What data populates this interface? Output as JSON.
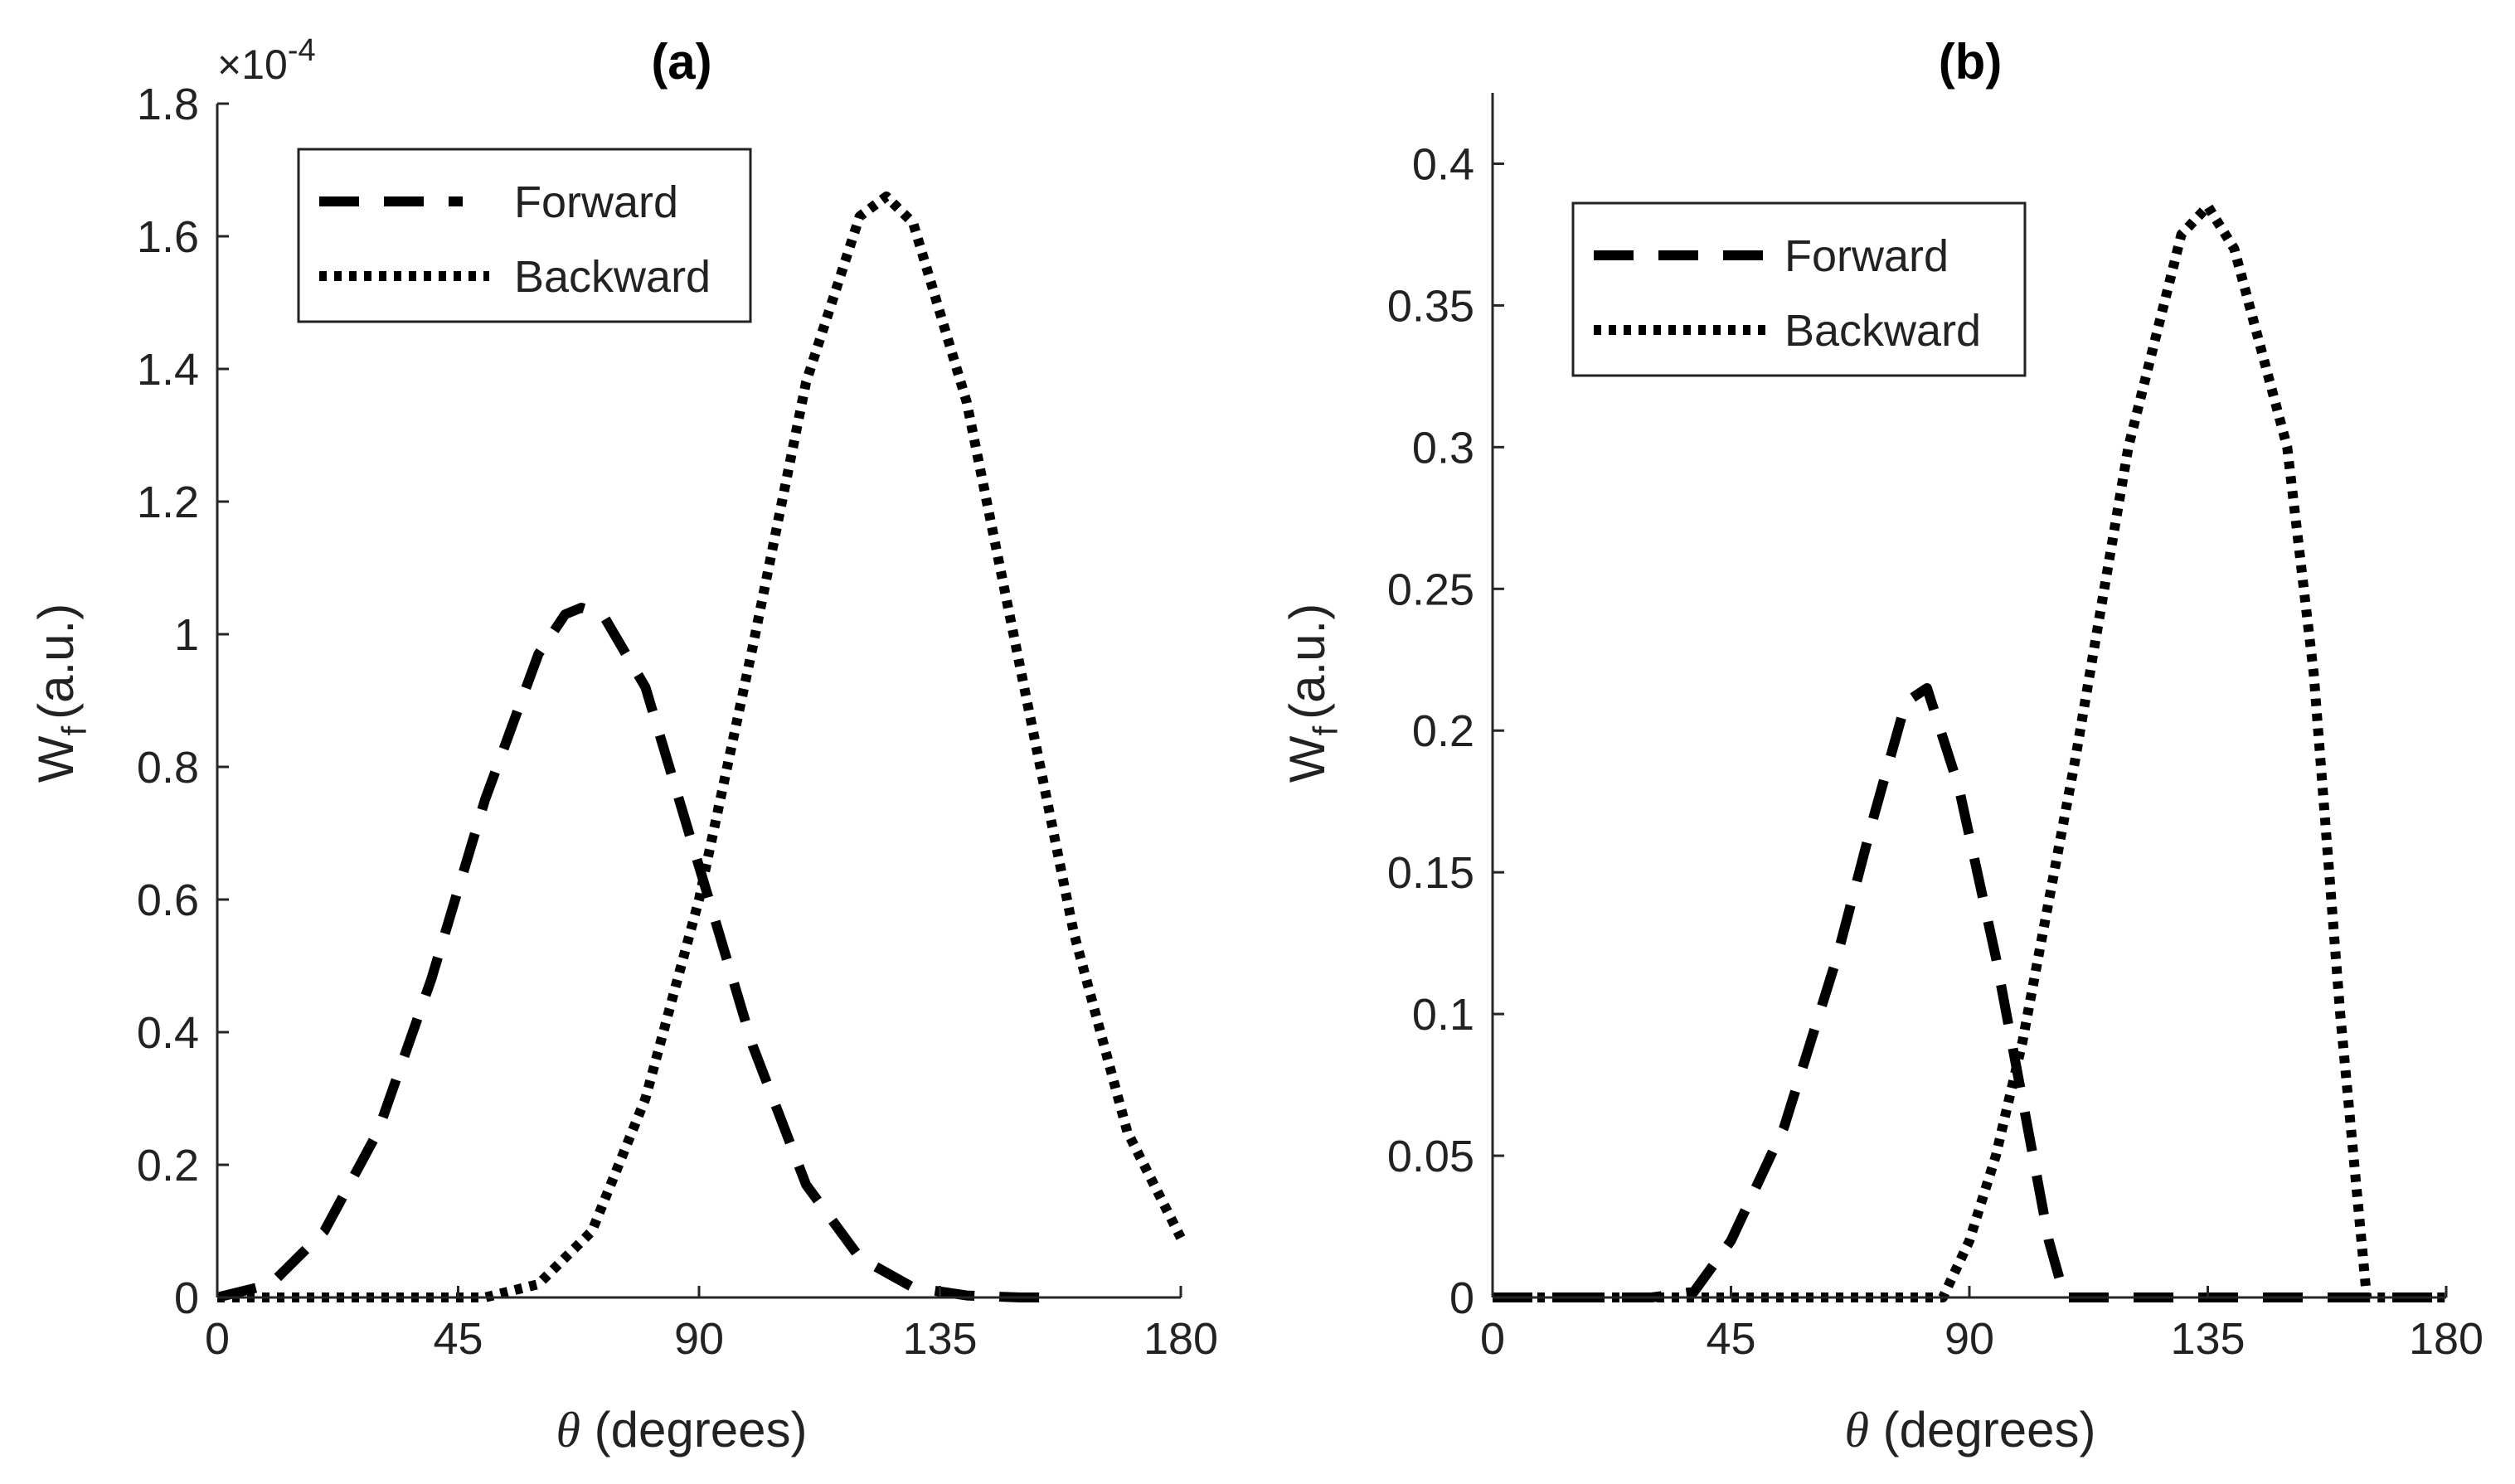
{
  "chart_data": [
    {
      "type": "line",
      "panel": "a",
      "title": "(a)",
      "xlabel": "θ (degrees)",
      "ylabel": "W_f (a.u.)",
      "ylabel_base": "W",
      "ylabel_sub": "f",
      "ylabel_unit": "(a.u.)",
      "xlabel_symbol": "θ",
      "xlabel_rest": " (degrees)",
      "exponent_label": {
        "prefix": "×10",
        "power": "-4"
      },
      "xlim": [
        0,
        180
      ],
      "ylim": [
        0,
        1.8
      ],
      "xticks": [
        0,
        45,
        90,
        135,
        180
      ],
      "xtick_labels": [
        "0",
        "45",
        "90",
        "135",
        "180"
      ],
      "yticks": [
        0,
        0.2,
        0.4,
        0.6,
        0.8,
        1,
        1.2,
        1.4,
        1.6,
        1.8
      ],
      "ytick_labels": [
        "0",
        "0.2",
        "0.4",
        "0.6",
        "0.8",
        "1",
        "1.2",
        "1.4",
        "1.6",
        "1.8"
      ],
      "legend": {
        "position": "top-left",
        "entries": [
          "Forward",
          "Backward"
        ]
      },
      "series": [
        {
          "name": "Forward",
          "style": "dashed",
          "x": [
            0,
            10,
            20,
            30,
            40,
            50,
            60,
            65,
            68,
            72,
            80,
            90,
            100,
            110,
            120,
            130,
            140,
            150,
            155
          ],
          "y": [
            0,
            0.02,
            0.1,
            0.25,
            0.48,
            0.75,
            0.97,
            1.03,
            1.04,
            1.03,
            0.92,
            0.65,
            0.38,
            0.17,
            0.06,
            0.015,
            0.003,
            0,
            0
          ]
        },
        {
          "name": "Backward",
          "style": "dotted",
          "x": [
            0,
            30,
            50,
            60,
            70,
            80,
            90,
            100,
            110,
            120,
            125,
            130,
            140,
            150,
            160,
            170,
            180
          ],
          "y": [
            0,
            0,
            0,
            0.02,
            0.1,
            0.3,
            0.6,
            0.98,
            1.38,
            1.63,
            1.66,
            1.62,
            1.35,
            0.95,
            0.55,
            0.25,
            0.09
          ]
        }
      ]
    },
    {
      "type": "line",
      "panel": "b",
      "title": "(b)",
      "xlabel": "θ (degrees)",
      "ylabel": "W_f (a.u.)",
      "ylabel_base": "W",
      "ylabel_sub": "f",
      "ylabel_unit": "(a.u.)",
      "xlabel_symbol": "θ",
      "xlabel_rest": " (degrees)",
      "xlim": [
        0,
        180
      ],
      "ylim": [
        0,
        0.425
      ],
      "xticks": [
        0,
        45,
        90,
        135,
        180
      ],
      "xtick_labels": [
        "0",
        "45",
        "90",
        "135",
        "180"
      ],
      "yticks": [
        0,
        0.05,
        0.1,
        0.15,
        0.2,
        0.25,
        0.3,
        0.35,
        0.4
      ],
      "ytick_labels": [
        "0",
        "0.05",
        "0.1",
        "0.15",
        "0.2",
        "0.25",
        "0.3",
        "0.35",
        "0.4"
      ],
      "legend": {
        "position": "top-left",
        "entries": [
          "Forward",
          "Backward"
        ]
      },
      "series": [
        {
          "name": "Forward",
          "style": "dashed",
          "x": [
            0,
            30,
            38,
            45,
            55,
            65,
            72,
            78,
            82,
            88,
            95,
            100,
            105,
            108,
            115,
            130,
            150,
            165,
            180
          ],
          "y": [
            0,
            0,
            0.002,
            0.02,
            0.06,
            0.12,
            0.17,
            0.21,
            0.215,
            0.18,
            0.12,
            0.07,
            0.02,
            0,
            0,
            0,
            0,
            0,
            0
          ]
        },
        {
          "name": "Backward",
          "style": "dotted",
          "x": [
            0,
            60,
            85,
            90,
            95,
            100,
            110,
            120,
            130,
            135,
            140,
            150,
            155,
            160,
            165,
            170,
            180
          ],
          "y": [
            0,
            0,
            0,
            0.02,
            0.05,
            0.09,
            0.19,
            0.3,
            0.375,
            0.385,
            0.37,
            0.3,
            0.22,
            0.1,
            0,
            0,
            0
          ]
        }
      ]
    }
  ]
}
